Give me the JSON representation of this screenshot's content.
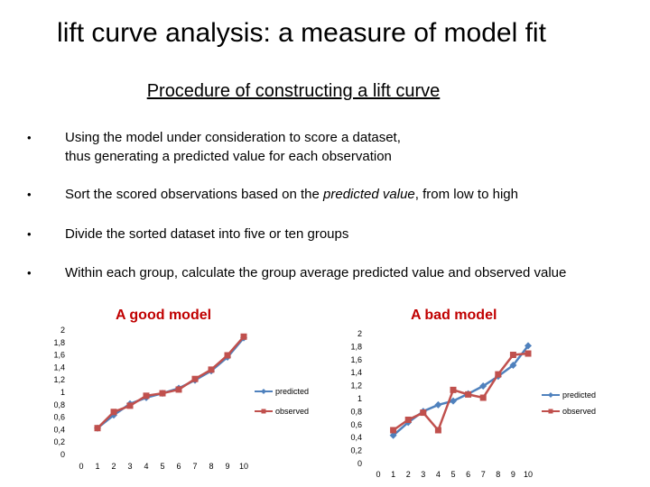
{
  "slide": {
    "title": "lift curve analysis:  a measure of model fit",
    "subtitle": "Procedure  of constructing  a lift curve",
    "bullet_symbol": "•",
    "bullets": [
      {
        "before": "Using the model under consideration to score a dataset,\n thus generating  a predicted value for each observation",
        "em": "",
        "after": ""
      },
      {
        "before": "Sort the scored observations based on the ",
        "em": "predicted value",
        "after": ", from low to high"
      },
      {
        "before": "Divide the sorted dataset into five or ten groups",
        "em": "",
        "after": ""
      },
      {
        "before": "Within each group, calculate the group average predicted value and observed value",
        "em": "",
        "after": ""
      }
    ]
  },
  "colors": {
    "predicted": "#4f81bd",
    "observed": "#c0504d",
    "chart_title": "#c00000"
  },
  "chart_data": [
    {
      "type": "line",
      "title": "A good model",
      "x": [
        1,
        2,
        3,
        4,
        5,
        6,
        7,
        8,
        9,
        10
      ],
      "xticks": [
        "0",
        "1",
        "2",
        "3",
        "4",
        "5",
        "6",
        "7",
        "8",
        "9",
        "10"
      ],
      "ylim": [
        0,
        2
      ],
      "yticks": [
        "0",
        "0,2",
        "0,4",
        "0,6",
        "0,8",
        "1",
        "1,2",
        "1,4",
        "1,6",
        "1,8",
        "2"
      ],
      "legend_position": "right",
      "series": [
        {
          "name": "predicted",
          "values": [
            0.41,
            0.62,
            0.8,
            0.9,
            0.97,
            1.05,
            1.18,
            1.33,
            1.55,
            1.86
          ]
        },
        {
          "name": "observed",
          "values": [
            0.41,
            0.67,
            0.77,
            0.93,
            0.97,
            1.03,
            1.2,
            1.35,
            1.58,
            1.88
          ]
        }
      ]
    },
    {
      "type": "line",
      "title": "A bad model",
      "x": [
        1,
        2,
        3,
        4,
        5,
        6,
        7,
        8,
        9,
        10
      ],
      "xticks": [
        "0",
        "1",
        "2",
        "3",
        "4",
        "5",
        "6",
        "7",
        "8",
        "9",
        "10"
      ],
      "ylim": [
        0,
        2
      ],
      "yticks": [
        "0",
        "0,2",
        "0,4",
        "0,6",
        "0,8",
        "1",
        "1,2",
        "1,4",
        "1,6",
        "1,8",
        "2"
      ],
      "legend_position": "right",
      "series": [
        {
          "name": "predicted",
          "values": [
            0.42,
            0.62,
            0.79,
            0.89,
            0.95,
            1.06,
            1.18,
            1.33,
            1.5,
            1.8
          ]
        },
        {
          "name": "observed",
          "values": [
            0.5,
            0.66,
            0.77,
            0.5,
            1.12,
            1.05,
            1.0,
            1.36,
            1.66,
            1.68
          ]
        }
      ]
    }
  ]
}
